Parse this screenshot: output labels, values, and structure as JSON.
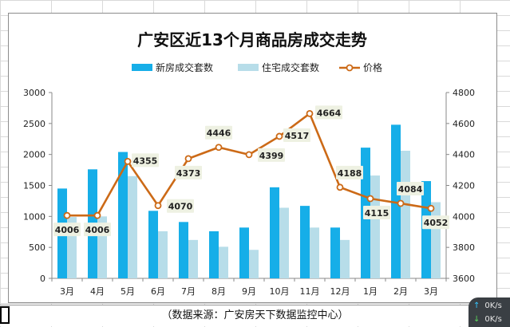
{
  "caption": "（数据来源：广安房天下数据监控中心）",
  "net_widget": {
    "up": "0K/s",
    "down": "0K/s"
  },
  "chart_data": {
    "type": "bar",
    "title": "广安区近13个月商品房成交走势",
    "categories": [
      "3月",
      "4月",
      "5月",
      "6月",
      "7月",
      "8月",
      "9月",
      "10月",
      "11月",
      "12月",
      "1月",
      "2月",
      "3月"
    ],
    "series": [
      {
        "name": "新房成交套数",
        "type": "bar",
        "axis": "left",
        "color": "#16aee8",
        "values": [
          1450,
          1760,
          2040,
          1090,
          910,
          760,
          820,
          1470,
          1170,
          820,
          2110,
          2480,
          1570
        ]
      },
      {
        "name": "住宅成交套数",
        "type": "bar",
        "axis": "left",
        "color": "#b7dde9",
        "values": [
          990,
          1000,
          1650,
          760,
          620,
          510,
          460,
          1140,
          820,
          620,
          1660,
          2060,
          1230
        ]
      },
      {
        "name": "价格",
        "type": "line",
        "axis": "right",
        "color": "#cc6a17",
        "values": [
          4006,
          4006,
          4355,
          4070,
          4373,
          4446,
          4399,
          4517,
          4664,
          4188,
          4115,
          4084,
          4052
        ],
        "labels": [
          "4006",
          "4006",
          "4355",
          "4070",
          "4373",
          "4446",
          "4399",
          "4517",
          "4664",
          "4188",
          "4115",
          "4084",
          "4052"
        ]
      }
    ],
    "y_left": {
      "ylim": [
        0,
        3000
      ],
      "ticks": [
        "0",
        "500",
        "1000",
        "1500",
        "2000",
        "2500",
        "3000"
      ]
    },
    "y_right": {
      "ylim": [
        3600,
        4800
      ],
      "ticks": [
        "3600",
        "3800",
        "4000",
        "4200",
        "4400",
        "4600",
        "4800"
      ]
    },
    "legend_position": "top",
    "grid": false
  }
}
